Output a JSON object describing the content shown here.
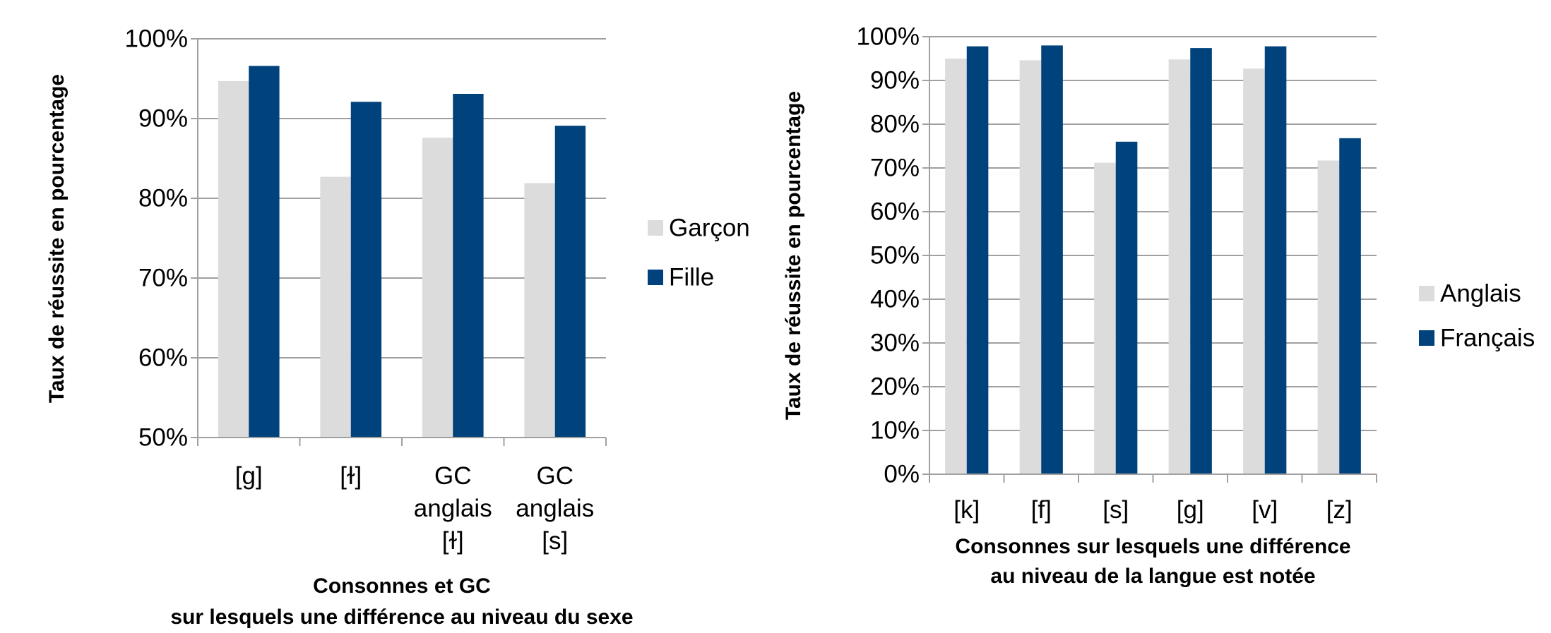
{
  "chart_data": [
    {
      "type": "bar",
      "ylabel": "Taux de réussite en pourcentage",
      "xlabel": [
        "Consonnes et GC",
        "sur lesquels une différence au niveau du sexe"
      ],
      "categories": [
        "[g]",
        "[ɫ]",
        "GC anglais [ɫ]",
        "GC anglais [s]"
      ],
      "series": [
        {
          "name": "Garçon",
          "color": "#dcdcdc",
          "values": [
            94.7,
            82.7,
            87.6,
            81.9
          ]
        },
        {
          "name": "Fille",
          "color": "#00427c",
          "values": [
            96.6,
            92.1,
            93.1,
            89.1
          ]
        }
      ],
      "ylim": [
        50,
        100
      ],
      "yticks": [
        {
          "value": 50,
          "label": "50%"
        },
        {
          "value": 60,
          "label": "60%"
        },
        {
          "value": 70,
          "label": "70%"
        },
        {
          "value": 80,
          "label": "80%"
        },
        {
          "value": 90,
          "label": "90%"
        },
        {
          "value": 100,
          "label": "100%"
        }
      ],
      "grid": true
    },
    {
      "type": "bar",
      "ylabel": "Taux de réussite en pourcentage",
      "xlabel": [
        "Consonnes sur lesquels une différence",
        "au niveau de la langue est notée"
      ],
      "categories": [
        "[k]",
        "[f]",
        "[s]",
        "[g]",
        "[v]",
        "[z]"
      ],
      "series": [
        {
          "name": "Anglais",
          "color": "#dcdcdc",
          "values": [
            95,
            94.6,
            71.2,
            94.8,
            92.7,
            71.7
          ]
        },
        {
          "name": "Français",
          "color": "#00427c",
          "values": [
            97.8,
            98,
            76,
            97.4,
            97.8,
            76.8
          ]
        }
      ],
      "ylim": [
        0,
        100
      ],
      "yticks": [
        {
          "value": 0,
          "label": "0%"
        },
        {
          "value": 10,
          "label": "10%"
        },
        {
          "value": 20,
          "label": "20%"
        },
        {
          "value": 30,
          "label": "30%"
        },
        {
          "value": 40,
          "label": "40%"
        },
        {
          "value": 50,
          "label": "50%"
        },
        {
          "value": 60,
          "label": "60%"
        },
        {
          "value": 70,
          "label": "70%"
        },
        {
          "value": 80,
          "label": "80%"
        },
        {
          "value": 90,
          "label": "90%"
        },
        {
          "value": 100,
          "label": "100%"
        }
      ],
      "grid": true
    }
  ]
}
